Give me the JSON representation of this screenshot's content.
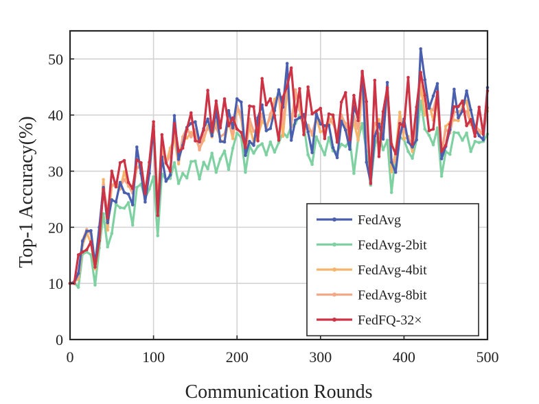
{
  "chart_data": {
    "type": "line",
    "title": "",
    "xlabel": "Communication Rounds",
    "ylabel": "Top-1 Accuracy(%)",
    "xlim": [
      0,
      500
    ],
    "ylim": [
      0,
      55
    ],
    "xticks": [
      0,
      100,
      200,
      300,
      400,
      500
    ],
    "yticks": [
      0,
      10,
      20,
      30,
      40,
      50
    ],
    "grid": true,
    "legend_position": "bottom-right",
    "x": [
      0,
      5,
      10,
      15,
      20,
      25,
      30,
      35,
      40,
      45,
      50,
      55,
      60,
      65,
      70,
      75,
      80,
      85,
      90,
      95,
      100,
      105,
      110,
      115,
      120,
      125,
      130,
      135,
      140,
      145,
      150,
      155,
      160,
      165,
      170,
      175,
      180,
      185,
      190,
      195,
      200,
      205,
      210,
      215,
      220,
      225,
      230,
      235,
      240,
      245,
      250,
      255,
      260,
      265,
      270,
      275,
      280,
      285,
      290,
      295,
      300,
      305,
      310,
      315,
      320,
      325,
      330,
      335,
      340,
      345,
      350,
      355,
      360,
      365,
      370,
      375,
      380,
      385,
      390,
      395,
      400,
      405,
      410,
      415,
      420,
      425,
      430,
      435,
      440,
      445,
      450,
      455,
      460,
      465,
      470,
      475,
      480,
      485,
      490,
      495,
      500
    ],
    "series": [
      {
        "name": "FedAvg",
        "color": "#4a5fae",
        "values": [
          10.0,
          10.2,
          11.8,
          17.5,
          19.3,
          19.4,
          13.4,
          20.0,
          27.1,
          20.8,
          24.9,
          24.5,
          28.0,
          26.2,
          25.9,
          24.0,
          34.3,
          29.6,
          24.5,
          29.6,
          38.0,
          22.1,
          32.5,
          28.2,
          29.3,
          39.9,
          32.1,
          34.6,
          37.8,
          38.5,
          38.8,
          35.2,
          37.6,
          39.3,
          36.3,
          40.8,
          35.3,
          35.2,
          40.8,
          37.7,
          42.9,
          42.3,
          32.8,
          35.3,
          34.6,
          39.5,
          41.8,
          37.2,
          37.6,
          40.8,
          44.5,
          41.4,
          49.2,
          35.5,
          39.1,
          39.5,
          40.1,
          37.0,
          33.3,
          40.2,
          38.4,
          38.1,
          38.2,
          34.2,
          32.4,
          38.9,
          37.3,
          33.9,
          41.5,
          39.5,
          47.5,
          31.6,
          28.0,
          36.2,
          38.4,
          35.7,
          45.8,
          31.6,
          29.8,
          36.1,
          39.3,
          35.2,
          34.3,
          35.6,
          51.8,
          46.3,
          41.2,
          43.4,
          45.6,
          32.2,
          34.4,
          37.4,
          44.6,
          39.5,
          40.7,
          44.3,
          40.9,
          37.6,
          36.3,
          35.6,
          44.9
        ]
      },
      {
        "name": "FedAvg-2bit",
        "color": "#7fd1a2",
        "values": [
          10.0,
          10.1,
          9.3,
          15.2,
          15.6,
          15.1,
          9.7,
          16.3,
          22.4,
          16.5,
          18.9,
          24.1,
          23.5,
          23.4,
          24.4,
          20.4,
          27.1,
          27.7,
          25.2,
          26.8,
          29.0,
          18.5,
          29.5,
          28.5,
          28.7,
          31.5,
          27.8,
          29.6,
          28.8,
          31.7,
          31.8,
          28.6,
          31.6,
          30.4,
          33.2,
          29.8,
          32.2,
          33.6,
          30.3,
          34.1,
          36.8,
          36.0,
          29.8,
          34.5,
          33.2,
          34.4,
          34.9,
          32.9,
          35.2,
          33.4,
          35.1,
          36.9,
          36.1,
          38.0,
          38.5,
          40.0,
          38.1,
          32.9,
          31.2,
          36.1,
          34.5,
          32.9,
          36.0,
          33.6,
          33.4,
          34.8,
          34.4,
          35.5,
          29.6,
          35.6,
          38.5,
          33.5,
          27.5,
          34.5,
          36.7,
          33.8,
          35.5,
          26.2,
          32.8,
          36.0,
          35.6,
          33.5,
          32.3,
          35.5,
          42.5,
          37.5,
          36.4,
          34.7,
          37.7,
          29.1,
          33.5,
          33.0,
          36.9,
          36.8,
          35.5,
          36.8,
          33.5,
          35.3,
          35.1,
          35.3,
          36.6
        ]
      },
      {
        "name": "FedAvg-4bit",
        "color": "#f5b46a",
        "values": [
          10.0,
          10.3,
          10.8,
          16.8,
          19.0,
          17.2,
          12.6,
          17.9,
          28.5,
          19.5,
          27.4,
          27.5,
          26.8,
          29.9,
          27.3,
          27.2,
          30.6,
          31.2,
          25.3,
          31.4,
          38.3,
          24.6,
          34.0,
          31.3,
          34.1,
          35.7,
          31.3,
          35.7,
          35.9,
          36.9,
          36.0,
          34.1,
          35.5,
          38.1,
          36.1,
          38.8,
          35.5,
          35.3,
          39.0,
          35.8,
          41.2,
          39.5,
          33.6,
          38.1,
          35.1,
          36.2,
          38.9,
          38.1,
          39.4,
          42.8,
          43.5,
          36.2,
          44.7,
          38.8,
          43.4,
          42.2,
          37.1,
          38.2,
          36.4,
          39.5,
          37.0,
          37.3,
          38.4,
          39.8,
          35.1,
          39.7,
          38.5,
          35.7,
          38.9,
          35.5,
          45.0,
          39.1,
          30.3,
          38.4,
          39.2,
          36.2,
          44.6,
          29.9,
          33.4,
          40.5,
          35.7,
          36.2,
          33.5,
          38.3,
          45.1,
          40.0,
          42.0,
          39.1,
          42.6,
          32.8,
          38.0,
          38.7,
          39.1,
          39.0,
          41.5,
          42.5,
          38.3,
          38.2,
          36.5,
          37.2,
          40.7
        ]
      },
      {
        "name": "FedAvg-8bit",
        "color": "#f4a886",
        "values": [
          10.0,
          10.3,
          11.3,
          17.7,
          19.6,
          18.8,
          13.0,
          19.3,
          27.5,
          22.6,
          27.5,
          28.0,
          27.3,
          28.5,
          27.5,
          26.1,
          30.6,
          30.6,
          25.5,
          30.7,
          38.4,
          23.3,
          33.3,
          31.5,
          32.7,
          37.1,
          31.8,
          36.1,
          37.7,
          36.1,
          37.4,
          33.8,
          36.2,
          37.6,
          38.2,
          37.7,
          36.2,
          36.6,
          39.3,
          36.7,
          41.6,
          40.1,
          34.0,
          39.3,
          37.1,
          37.6,
          40.2,
          37.5,
          40.2,
          42.0,
          43.7,
          38.5,
          46.2,
          37.9,
          44.5,
          40.9,
          37.8,
          38.1,
          36.7,
          39.4,
          39.0,
          37.5,
          39.4,
          38.5,
          36.6,
          40.0,
          38.2,
          36.9,
          39.7,
          37.6,
          46.5,
          37.7,
          30.3,
          38.5,
          37.9,
          36.1,
          44.2,
          32.0,
          31.6,
          39.0,
          37.3,
          35.9,
          34.8,
          37.3,
          47.5,
          42.6,
          41.3,
          40.9,
          43.8,
          33.4,
          37.4,
          36.8,
          40.5,
          40.6,
          40.9,
          40.6,
          38.5,
          38.1,
          37.3,
          36.5,
          41.3
        ]
      },
      {
        "name": "FedFQ-32×",
        "color": "#cc3344",
        "values": [
          10.0,
          10.0,
          15.1,
          15.6,
          16.0,
          17.4,
          12.9,
          17.6,
          26.8,
          21.7,
          30.0,
          27.2,
          31.5,
          31.9,
          28.0,
          26.9,
          32.0,
          31.5,
          26.0,
          31.6,
          38.8,
          22.1,
          36.5,
          31.5,
          30.0,
          38.5,
          33.5,
          34.1,
          37.5,
          40.4,
          35.4,
          35.3,
          37.3,
          44.4,
          37.1,
          42.5,
          37.7,
          42.9,
          38.1,
          39.5,
          37.5,
          36.9,
          34.2,
          41.6,
          41.5,
          35.4,
          46.5,
          41.8,
          42.9,
          39.9,
          35.5,
          43.2,
          45.1,
          48.4,
          39.8,
          44.7,
          36.5,
          45.0,
          40.2,
          40.7,
          41.2,
          35.8,
          40.2,
          40.0,
          35.2,
          42.3,
          44.0,
          35.6,
          43.5,
          39.0,
          47.8,
          42.4,
          27.8,
          46.2,
          32.6,
          40.6,
          44.9,
          34.8,
          33.1,
          38.5,
          38.0,
          46.7,
          34.8,
          41.4,
          47.6,
          43.5,
          37.2,
          37.5,
          44.1,
          33.5,
          34.6,
          38.3,
          41.5,
          41.5,
          42.5,
          38.1,
          39.2,
          36.2,
          41.4,
          36.6,
          44.3
        ]
      }
    ]
  }
}
